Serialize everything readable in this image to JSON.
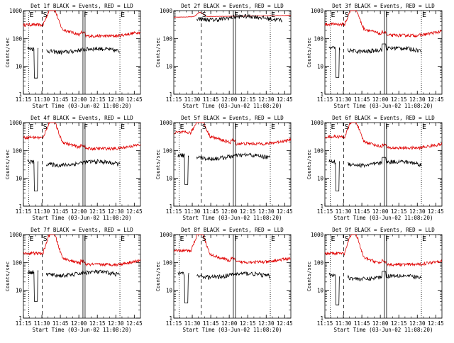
{
  "figure": {
    "event_label": "Events",
    "lld_label": "LLD",
    "colors": {
      "events": "#000000",
      "lld": "#e00000",
      "axes": "#000000",
      "background": "#ffffff"
    }
  },
  "chart_data": [
    {
      "type": "line",
      "title": "Det 1f BLACK = Events, RED = LLD",
      "xlabel": "Start Time (03-Jun-02 11:08:20)",
      "ylabel": "Counts/sec",
      "yscale": "log",
      "ylim": [
        1,
        1000
      ],
      "yticks": [
        "1",
        "10",
        "100",
        "1000"
      ],
      "xticks": [
        "11:15",
        "11:30",
        "11:45",
        "12:00",
        "12:15",
        "12:30",
        "12:45"
      ],
      "xlim_minutes": [
        11.67,
        106.67
      ],
      "markers": [
        {
          "label": "E",
          "x": 16,
          "style": "dotted"
        },
        {
          "label": "S",
          "x": 27,
          "style": "dashed"
        },
        {
          "label": "F",
          "x": 60,
          "style": "solid"
        },
        {
          "label": "E",
          "x": 90,
          "style": "dotted"
        }
      ],
      "series": [
        {
          "name": "Events",
          "color": "#000000",
          "start": 15,
          "end": 90,
          "base": 38,
          "dip": true,
          "bump": 0
        },
        {
          "name": "LLD",
          "color": "#e00000",
          "start": 11.67,
          "end": 106.67,
          "base": 190,
          "flare_peak": 1000,
          "flare_t": 35,
          "flat": false
        }
      ]
    },
    {
      "type": "line",
      "title": "Det 2f BLACK = Events, RED = LLD",
      "xlabel": "Start Time (03-Jun-02 11:08:20)",
      "ylabel": "Counts/sec",
      "yscale": "log",
      "ylim": [
        1,
        1000
      ],
      "yticks": [
        "1",
        "10",
        "100",
        "1000"
      ],
      "xticks": [
        "11:15",
        "11:30",
        "11:45",
        "12:00",
        "12:15",
        "12:30",
        "12:45"
      ],
      "xlim_minutes": [
        11.67,
        106.67
      ],
      "markers": [
        {
          "label": "S",
          "x": 34,
          "style": "dashed"
        },
        {
          "label": "F",
          "x": 60,
          "style": "solid"
        },
        {
          "label": "E",
          "x": 90,
          "style": "dotted"
        }
      ],
      "series": [
        {
          "name": "Events",
          "color": "#000000",
          "start": 28,
          "end": 100,
          "base": 550,
          "dip": true,
          "bump": 0
        },
        {
          "name": "LLD",
          "color": "#e00000",
          "start": 11.67,
          "end": 106.67,
          "base": 640,
          "flare_peak": 900,
          "flare_t": 33,
          "flat": true
        }
      ]
    },
    {
      "type": "line",
      "title": "Det 3f BLACK = Events, RED = LLD",
      "xlabel": "Start Time (03-Jun-02 11:08:20)",
      "ylabel": "Counts/sec",
      "yscale": "log",
      "ylim": [
        1,
        1000
      ],
      "yticks": [
        "1",
        "10",
        "100",
        "1000"
      ],
      "xticks": [
        "11:15",
        "11:30",
        "11:45",
        "12:00",
        "12:15",
        "12:30",
        "12:45"
      ],
      "xlim_minutes": [
        11.67,
        106.67
      ],
      "markers": [
        {
          "label": "E",
          "x": 16,
          "style": "dotted"
        },
        {
          "label": "S",
          "x": 27,
          "style": "dashed"
        },
        {
          "label": "F",
          "x": 60,
          "style": "solid"
        },
        {
          "label": "E",
          "x": 90,
          "style": "dotted"
        }
      ],
      "series": [
        {
          "name": "Events",
          "color": "#000000",
          "start": 15,
          "end": 90,
          "base": 40,
          "dip": true,
          "bump": 12
        },
        {
          "name": "LLD",
          "color": "#e00000",
          "start": 11.67,
          "end": 106.67,
          "base": 200,
          "flare_peak": 1000,
          "flare_t": 35,
          "flat": false
        }
      ]
    },
    {
      "type": "line",
      "title": "Det 4f BLACK = Events, RED = LLD",
      "xlabel": "Start Time (03-Jun-02 11:08:20)",
      "ylabel": "Counts/sec",
      "yscale": "log",
      "ylim": [
        1,
        1000
      ],
      "yticks": [
        "1",
        "10",
        "100",
        "1000"
      ],
      "xticks": [
        "11:15",
        "11:30",
        "11:45",
        "12:00",
        "12:15",
        "12:30",
        "12:45"
      ],
      "xlim_minutes": [
        11.67,
        106.67
      ],
      "markers": [
        {
          "label": "E",
          "x": 16,
          "style": "dotted"
        },
        {
          "label": "S",
          "x": 27,
          "style": "dashed"
        },
        {
          "label": "F",
          "x": 60,
          "style": "solid"
        },
        {
          "label": "E",
          "x": 90,
          "style": "dotted"
        }
      ],
      "series": [
        {
          "name": "Events",
          "color": "#000000",
          "start": 15,
          "end": 90,
          "base": 35,
          "dip": true,
          "bump": 0
        },
        {
          "name": "LLD",
          "color": "#e00000",
          "start": 11.67,
          "end": 106.67,
          "base": 180,
          "flare_peak": 1000,
          "flare_t": 35,
          "flat": false
        }
      ]
    },
    {
      "type": "line",
      "title": "Det 5f BLACK = Events, RED = LLD",
      "xlabel": "Start Time (03-Jun-02 11:08:20)",
      "ylabel": "Counts/sec",
      "yscale": "log",
      "ylim": [
        1,
        1000
      ],
      "yticks": [
        "1",
        "10",
        "100",
        "1000"
      ],
      "xticks": [
        "11:15",
        "11:30",
        "11:45",
        "12:00",
        "12:15",
        "12:30",
        "12:45"
      ],
      "xlim_minutes": [
        11.67,
        106.67
      ],
      "markers": [
        {
          "label": "E",
          "x": 16,
          "style": "dotted"
        },
        {
          "label": "S",
          "x": 34,
          "style": "dashed"
        },
        {
          "label": "F",
          "x": 60,
          "style": "solid"
        },
        {
          "label": "E",
          "x": 90,
          "style": "dotted"
        }
      ],
      "series": [
        {
          "name": "Events",
          "color": "#000000",
          "start": 15,
          "end": 90,
          "base": 60,
          "dip": true,
          "bump": 0
        },
        {
          "name": "LLD",
          "color": "#e00000",
          "start": 11.67,
          "end": 106.67,
          "base": 270,
          "flare_peak": 1000,
          "flare_t": 33,
          "flat": false
        }
      ]
    },
    {
      "type": "line",
      "title": "Det 6f BLACK = Events, RED = LLD",
      "xlabel": "Start Time (03-Jun-02 11:08:20)",
      "ylabel": "Counts/sec",
      "yscale": "log",
      "ylim": [
        1,
        1000
      ],
      "yticks": [
        "1",
        "10",
        "100",
        "1000"
      ],
      "xticks": [
        "11:15",
        "11:30",
        "11:45",
        "12:00",
        "12:15",
        "12:30",
        "12:45"
      ],
      "xlim_minutes": [
        11.67,
        106.67
      ],
      "markers": [
        {
          "label": "E",
          "x": 16,
          "style": "dotted"
        },
        {
          "label": "S",
          "x": 27,
          "style": "dashed"
        },
        {
          "label": "F",
          "x": 60,
          "style": "solid"
        },
        {
          "label": "E",
          "x": 90,
          "style": "dotted"
        }
      ],
      "series": [
        {
          "name": "Events",
          "color": "#000000",
          "start": 15,
          "end": 90,
          "base": 35,
          "dip": true,
          "bump": 12
        },
        {
          "name": "LLD",
          "color": "#e00000",
          "start": 11.67,
          "end": 106.67,
          "base": 190,
          "flare_peak": 1000,
          "flare_t": 35,
          "flat": false
        }
      ]
    },
    {
      "type": "line",
      "title": "Det 7f BLACK = Events, RED = LLD",
      "xlabel": "Start Time (03-Jun-02 11:08:20)",
      "ylabel": "Counts/sec",
      "yscale": "log",
      "ylim": [
        1,
        1000
      ],
      "yticks": [
        "1",
        "10",
        "100",
        "1000"
      ],
      "xticks": [
        "11:15",
        "11:30",
        "11:45",
        "12:00",
        "12:15",
        "12:30",
        "12:45"
      ],
      "xlim_minutes": [
        11.67,
        106.67
      ],
      "markers": [
        {
          "label": "E",
          "x": 16,
          "style": "dotted"
        },
        {
          "label": "S",
          "x": 27,
          "style": "dashed"
        },
        {
          "label": "F",
          "x": 60,
          "style": "solid"
        },
        {
          "label": "E",
          "x": 90,
          "style": "dotted"
        }
      ],
      "series": [
        {
          "name": "Events",
          "color": "#000000",
          "start": 15,
          "end": 90,
          "base": 40,
          "dip": true,
          "bump": 0
        },
        {
          "name": "LLD",
          "color": "#e00000",
          "start": 11.67,
          "end": 106.67,
          "base": 130,
          "flare_peak": 1000,
          "flare_t": 35,
          "flat": false
        }
      ]
    },
    {
      "type": "line",
      "title": "Det 8f BLACK = Events, RED = LLD",
      "xlabel": "Start Time (03-Jun-02 11:08:20)",
      "ylabel": "Counts/sec",
      "yscale": "log",
      "ylim": [
        1,
        1000
      ],
      "yticks": [
        "1",
        "10",
        "100",
        "1000"
      ],
      "xticks": [
        "11:15",
        "11:30",
        "11:45",
        "12:00",
        "12:15",
        "12:30",
        "12:45"
      ],
      "xlim_minutes": [
        11.67,
        106.67
      ],
      "markers": [
        {
          "label": "E",
          "x": 16,
          "style": "dotted"
        },
        {
          "label": "S",
          "x": 34,
          "style": "dashed"
        },
        {
          "label": "F",
          "x": 60,
          "style": "solid"
        },
        {
          "label": "E",
          "x": 90,
          "style": "dotted"
        }
      ],
      "series": [
        {
          "name": "Events",
          "color": "#000000",
          "start": 15,
          "end": 90,
          "base": 35,
          "dip": true,
          "bump": 0
        },
        {
          "name": "LLD",
          "color": "#e00000",
          "start": 11.67,
          "end": 106.67,
          "base": 160,
          "flare_peak": 1000,
          "flare_t": 33,
          "flat": false
        }
      ]
    },
    {
      "type": "line",
      "title": "Det 9f BLACK = Events, RED = LLD",
      "xlabel": "Start Time (03-Jun-02 11:08:20)",
      "ylabel": "Counts/sec",
      "yscale": "log",
      "ylim": [
        1,
        1000
      ],
      "yticks": [
        "1",
        "10",
        "100",
        "1000"
      ],
      "xticks": [
        "11:15",
        "11:30",
        "11:45",
        "12:00",
        "12:15",
        "12:30",
        "12:45"
      ],
      "xlim_minutes": [
        11.67,
        106.67
      ],
      "markers": [
        {
          "label": "E",
          "x": 16,
          "style": "dotted"
        },
        {
          "label": "S",
          "x": 27,
          "style": "dashed"
        },
        {
          "label": "F",
          "x": 60,
          "style": "solid"
        },
        {
          "label": "E",
          "x": 90,
          "style": "dotted"
        }
      ],
      "series": [
        {
          "name": "Events",
          "color": "#000000",
          "start": 15,
          "end": 90,
          "base": 30,
          "dip": true,
          "bump": 12
        },
        {
          "name": "LLD",
          "color": "#e00000",
          "start": 11.67,
          "end": 106.67,
          "base": 130,
          "flare_peak": 1000,
          "flare_t": 35,
          "flat": false
        }
      ]
    }
  ]
}
